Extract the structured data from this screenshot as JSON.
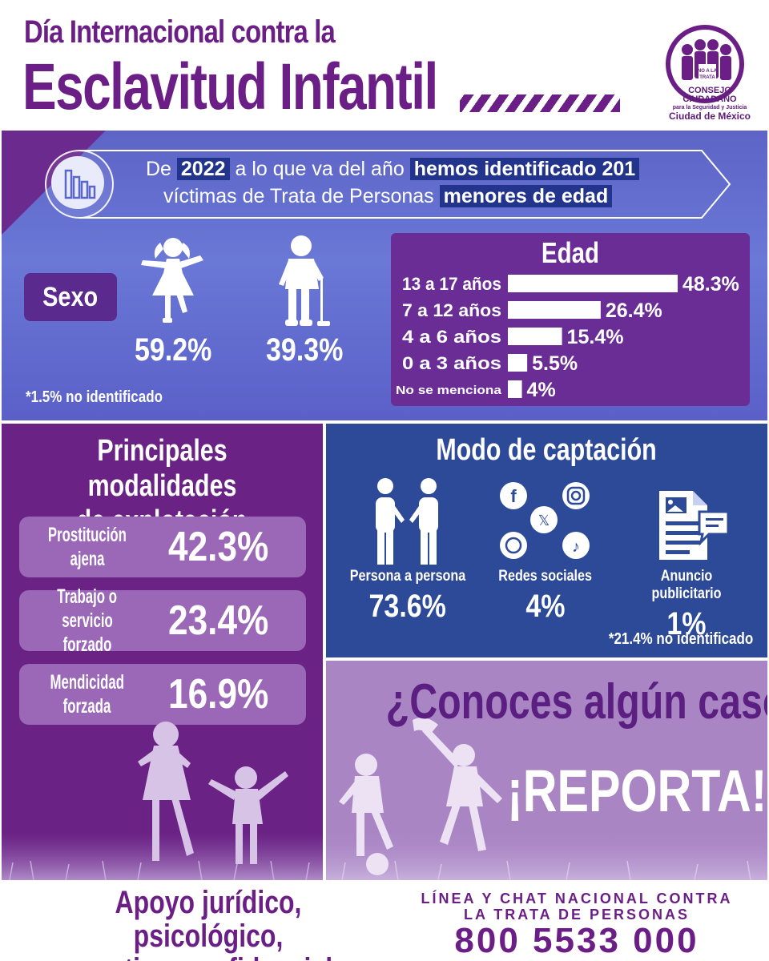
{
  "header": {
    "title_line1": "Día Internacional contra la",
    "title_line2": "Esclavitud Infantil",
    "logo_line1": "CONSEJO CIUDADANO",
    "logo_line2": "para la Seguridad y Justicia",
    "logo_line3": "Ciudad de México"
  },
  "banner": {
    "p1": "De ",
    "year": "2022",
    "p2": " a lo que va del año ",
    "hl1": "hemos identificado 201",
    "p3": "víctimas de Trata de Personas ",
    "hl2": "menores de edad"
  },
  "sexo": {
    "label": "Sexo",
    "female_pct": "59.2%",
    "male_pct": "39.3%",
    "note": "*1.5% no identificado"
  },
  "chart_data": {
    "type": "bar",
    "title": "Edad",
    "categories": [
      "13 a 17 años",
      "7 a 12 años",
      "4 a 6 años",
      "0 a 3 años",
      "No se menciona"
    ],
    "values": [
      48.3,
      26.4,
      15.4,
      5.5,
      4
    ],
    "labels": [
      "48.3%",
      "26.4%",
      "15.4%",
      "5.5%",
      "4%"
    ],
    "xlim": [
      0,
      48.3
    ]
  },
  "modalidades": {
    "title_line1": "Principales modalidades",
    "title_line2": "de explotación",
    "items": [
      {
        "label_line1": "Prostitución",
        "label_line2": "ajena",
        "value": "42.3%"
      },
      {
        "label_line1": "Trabajo o",
        "label_line2": "servicio forzado",
        "value": "23.4%"
      },
      {
        "label_line1": "Mendicidad",
        "label_line2": "forzada",
        "value": "16.9%"
      }
    ]
  },
  "captacion": {
    "title": "Modo de captación",
    "items": [
      {
        "label": "Persona a persona",
        "value": "73.6%"
      },
      {
        "label": "Redes sociales",
        "value": "4%"
      },
      {
        "label": "Anuncio publicitario",
        "value": "1%"
      }
    ],
    "note": "*21.4% no identificado"
  },
  "report": {
    "question": "¿Conoces algún caso?",
    "cta": "¡REPORTA!"
  },
  "footer": {
    "support_line1": "Apoyo jurídico, psicológico,",
    "support_line2": "gratis y confidencial",
    "hotline_line1": "LÍNEA Y CHAT NACIONAL CONTRA",
    "hotline_line2": "LA TRATA DE PERSONAS",
    "phone": "800 5533 000"
  },
  "colors": {
    "purple_dark": "#6b1f86",
    "blue_panel": "#2c4a98",
    "lilac": "#a985c4",
    "highlight": "#23348c"
  }
}
